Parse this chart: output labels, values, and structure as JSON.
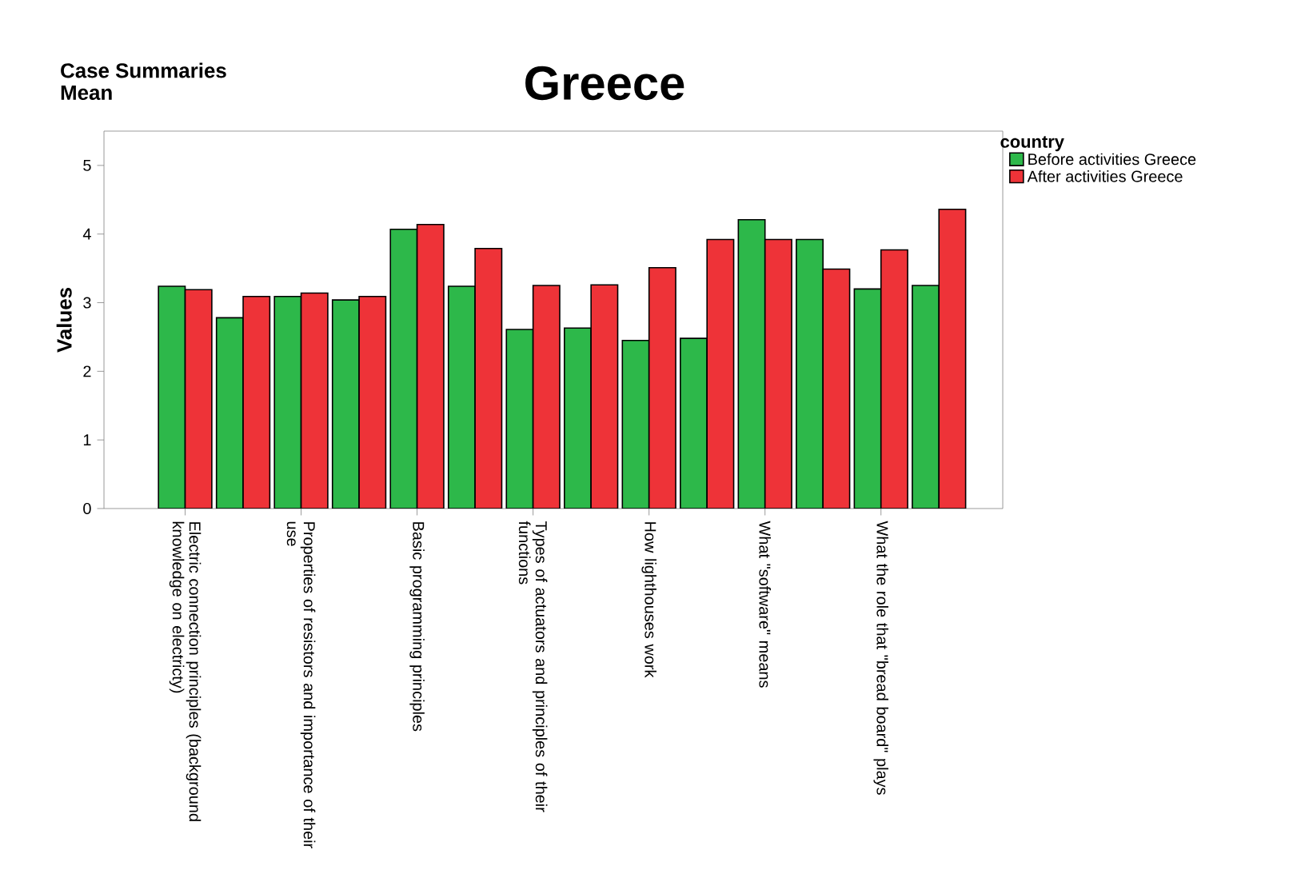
{
  "chart_data": {
    "type": "bar",
    "title": "Greece",
    "annotations": [
      "Case Summaries",
      "Mean"
    ],
    "ylabel": "Values",
    "legend_title": "country",
    "legend": "top right",
    "categories": [
      "Electric connection principles (background knowledge on electricty)",
      null,
      "Properties of resistors and importance of their use",
      null,
      "Basic programming principles",
      null,
      "Types of actuators and principles of their functions",
      null,
      "How lighthouses work",
      null,
      "What \"software\" means",
      null,
      "What the role that \"bread board\" plays",
      null
    ],
    "series": [
      {
        "name": "Before activities Greece",
        "color": "#2db84a",
        "values": [
          3.24,
          2.78,
          3.09,
          3.04,
          4.07,
          3.24,
          2.61,
          2.63,
          2.45,
          2.48,
          4.21,
          3.92,
          3.2,
          3.25
        ]
      },
      {
        "name": "After activities Greece",
        "color": "#ee3338",
        "values": [
          3.19,
          3.09,
          3.14,
          3.09,
          4.14,
          3.79,
          3.25,
          3.26,
          3.51,
          3.92,
          3.92,
          3.49,
          3.77,
          4.36
        ]
      }
    ],
    "ylim": [
      0,
      5.5
    ],
    "yticks": [
      0,
      1,
      2,
      3,
      4,
      5
    ],
    "grid": false
  }
}
